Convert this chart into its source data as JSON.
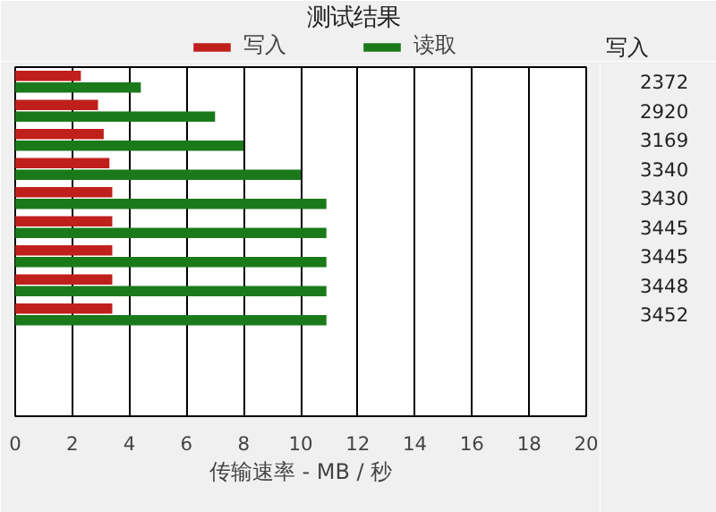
{
  "chart_data": {
    "type": "bar",
    "orientation": "horizontal",
    "title": "测试结果",
    "xlabel": "传输速率 - MB / 秒",
    "categories": [
      null,
      null,
      null,
      null,
      null,
      null,
      null,
      null,
      null,
      null,
      null,
      null
    ],
    "series": [
      {
        "name": "写入",
        "color": "#c0201c",
        "values": [
          2.3,
          2.9,
          3.1,
          3.3,
          3.4,
          3.4,
          3.4,
          3.4,
          3.4,
          null,
          null,
          null
        ]
      },
      {
        "name": "读取",
        "color": "#1a7a1a",
        "values": [
          4.4,
          7.0,
          8.0,
          10.0,
          10.9,
          10.9,
          10.9,
          10.9,
          10.9,
          null,
          null,
          null
        ]
      }
    ],
    "xlim": [
      0,
      20
    ],
    "xticks": [
      0,
      2,
      4,
      6,
      8,
      10,
      12,
      14,
      16,
      18,
      20
    ],
    "grid": "x",
    "legend": "top",
    "annotations": [
      "写入",
      "2372",
      "2920",
      "3169",
      "3340",
      "3430",
      "3445",
      "3445",
      "3448",
      "3452"
    ]
  }
}
